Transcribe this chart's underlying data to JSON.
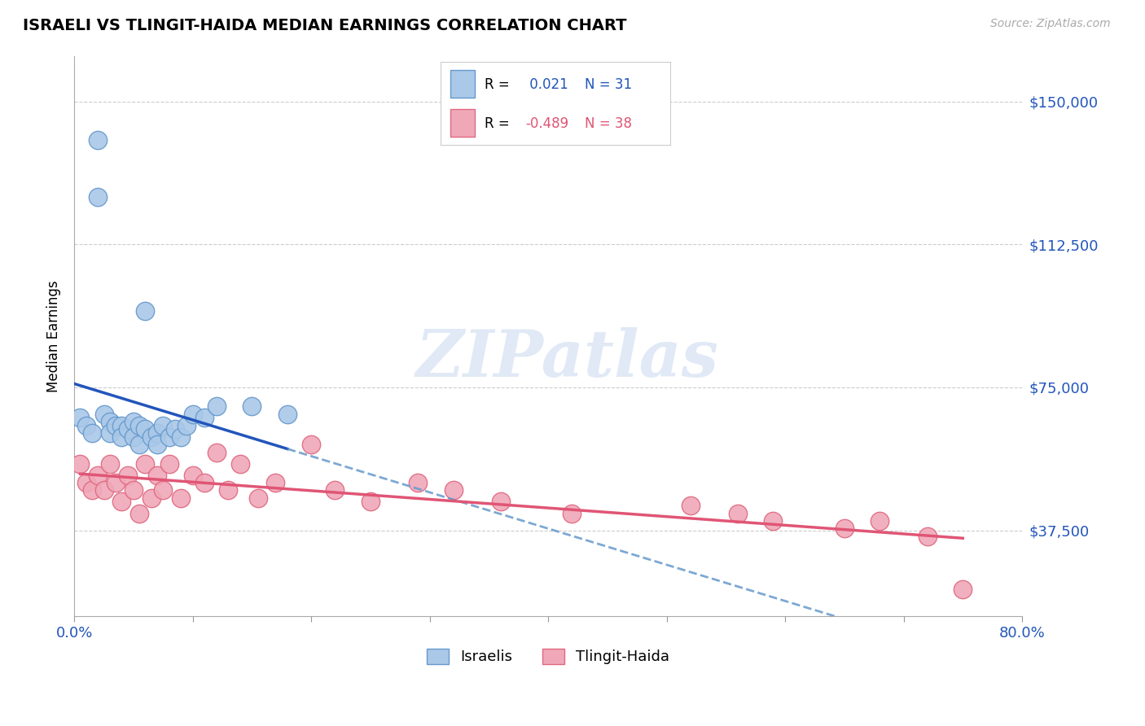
{
  "title": "ISRAELI VS TLINGIT-HAIDA MEDIAN EARNINGS CORRELATION CHART",
  "source": "Source: ZipAtlas.com",
  "ylabel": "Median Earnings",
  "xlim": [
    0.0,
    0.8
  ],
  "ylim": [
    15000,
    162000
  ],
  "yticks": [
    37500,
    75000,
    112500,
    150000
  ],
  "ytick_labels": [
    "$37,500",
    "$75,000",
    "$112,500",
    "$150,000"
  ],
  "xticks": [
    0.0,
    0.1,
    0.2,
    0.3,
    0.4,
    0.5,
    0.6,
    0.7,
    0.8
  ],
  "xtick_labels": [
    "0.0%",
    "",
    "",
    "",
    "",
    "",
    "",
    "",
    "80.0%"
  ],
  "background_color": "#ffffff",
  "grid_color": "#cccccc",
  "israeli_color": "#aac8e8",
  "israeli_edge_color": "#6699cc",
  "tlingit_color": "#f0a8b8",
  "tlingit_edge_color": "#e06880",
  "trend_blue_color": "#2255bb",
  "trend_blue_dash_color": "#6699cc",
  "trend_pink_color": "#e05575",
  "r_israeli": 0.021,
  "n_israeli": 31,
  "r_tlingit": -0.489,
  "n_tlingit": 38,
  "israeli_x": [
    0.005,
    0.01,
    0.015,
    0.02,
    0.02,
    0.025,
    0.03,
    0.03,
    0.035,
    0.04,
    0.04,
    0.045,
    0.05,
    0.05,
    0.055,
    0.055,
    0.06,
    0.06,
    0.065,
    0.07,
    0.07,
    0.075,
    0.08,
    0.085,
    0.09,
    0.095,
    0.1,
    0.11,
    0.12,
    0.15,
    0.18
  ],
  "israeli_y": [
    67000,
    65000,
    63000,
    140000,
    125000,
    68000,
    66000,
    63000,
    65000,
    65000,
    62000,
    64000,
    66000,
    62000,
    65000,
    60000,
    95000,
    64000,
    62000,
    63000,
    60000,
    65000,
    62000,
    64000,
    62000,
    65000,
    68000,
    67000,
    70000,
    70000,
    68000
  ],
  "tlingit_x": [
    0.005,
    0.01,
    0.015,
    0.02,
    0.025,
    0.03,
    0.035,
    0.04,
    0.045,
    0.05,
    0.055,
    0.06,
    0.065,
    0.07,
    0.075,
    0.08,
    0.09,
    0.1,
    0.11,
    0.12,
    0.13,
    0.14,
    0.155,
    0.17,
    0.2,
    0.22,
    0.25,
    0.29,
    0.32,
    0.36,
    0.42,
    0.52,
    0.56,
    0.59,
    0.65,
    0.68,
    0.72,
    0.75
  ],
  "tlingit_y": [
    55000,
    50000,
    48000,
    52000,
    48000,
    55000,
    50000,
    45000,
    52000,
    48000,
    42000,
    55000,
    46000,
    52000,
    48000,
    55000,
    46000,
    52000,
    50000,
    58000,
    48000,
    55000,
    46000,
    50000,
    60000,
    48000,
    45000,
    50000,
    48000,
    45000,
    42000,
    44000,
    42000,
    40000,
    38000,
    40000,
    36000,
    22000
  ],
  "watermark_text": "ZIPatlas",
  "legend_r_color_blue": "#2255bb",
  "legend_r_color_pink": "#e05575"
}
